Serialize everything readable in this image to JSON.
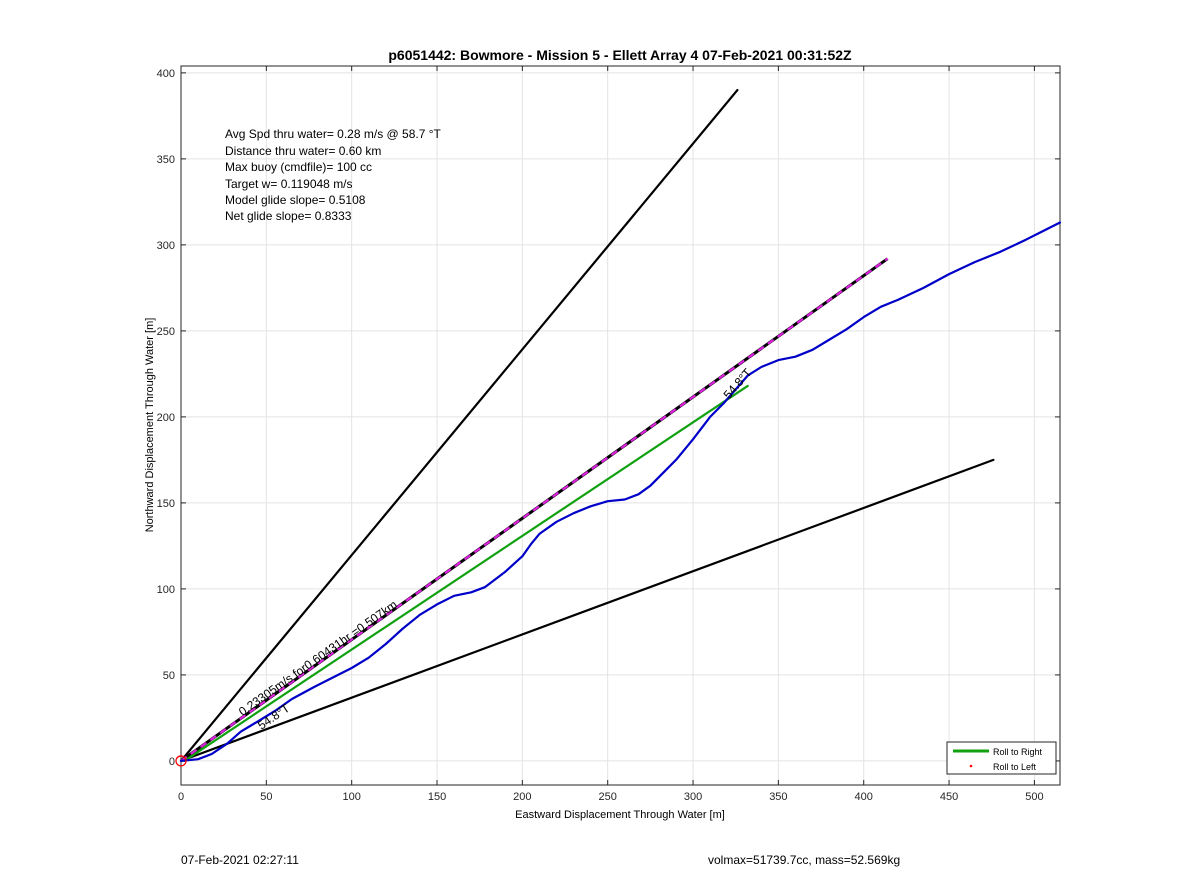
{
  "footer": {
    "left": "07-Feb-2021 02:27:11",
    "right": "volmax=51739.7cc, mass=52.569kg"
  },
  "chart_data": {
    "type": "line",
    "title": "p6051442: Bowmore - Mission 5 - Ellett Array 4 07-Feb-2021 00:31:52Z",
    "xlabel": "Eastward Displacement Through Water [m]",
    "ylabel": "Northward Displacement Through Water [m]",
    "xlim": [
      0,
      515
    ],
    "ylim": [
      -14,
      404
    ],
    "xticks": [
      0,
      50,
      100,
      150,
      200,
      250,
      300,
      350,
      400,
      450,
      500
    ],
    "yticks": [
      0,
      50,
      100,
      150,
      200,
      250,
      300,
      350,
      400
    ],
    "grid": true,
    "info_text": [
      "Avg Spd thru water=  0.28 m/s @  58.7 °T",
      "Distance thru water=  0.60 km",
      "Max buoy (cmdfile)= 100 cc",
      "Target w= 0.119048 m/s",
      "Model glide slope= 0.5108",
      "Net glide slope= 0.8333"
    ],
    "annotations": [
      {
        "text": "0.23305m/s for0.60431hr =0.507km",
        "x": 36,
        "y": 26,
        "angle_deg": 35.2
      },
      {
        "text": "54.8°T",
        "x": 47,
        "y": 18,
        "angle_deg": 34
      },
      {
        "text": "54.8°T",
        "x": 321,
        "y": 210,
        "angle_deg": 49
      }
    ],
    "legend": {
      "position": "bottom-right",
      "entries": [
        "Roll to Right",
        "Roll to Left"
      ]
    },
    "series": [
      {
        "kind": "wedge-left",
        "color": "#000000",
        "x": [
          0,
          326
        ],
        "y": [
          0,
          390
        ]
      },
      {
        "kind": "wedge-right",
        "color": "#000000",
        "x": [
          0,
          476
        ],
        "y": [
          0,
          175
        ]
      },
      {
        "kind": "current-vector",
        "color": "#000000",
        "dash_color": "#e020e0",
        "x": [
          0,
          414
        ],
        "y": [
          0,
          292
        ]
      },
      {
        "kind": "target-heading",
        "color": "#10a010",
        "x": [
          2,
          332
        ],
        "y": [
          0,
          218
        ]
      },
      {
        "kind": "track",
        "color": "#0000c8",
        "x": [
          0,
          10,
          18,
          27,
          35,
          45,
          55,
          65,
          78,
          90,
          100,
          110,
          120,
          130,
          140,
          150,
          160,
          170,
          178,
          190,
          200,
          205,
          210,
          220,
          230,
          240,
          250,
          260,
          268,
          275,
          282,
          290,
          300,
          310,
          318,
          325,
          332,
          340,
          350,
          360,
          370,
          380,
          390,
          400,
          410,
          420,
          435,
          450,
          465,
          480,
          495,
          505,
          515
        ],
        "y": [
          0,
          1,
          4,
          10,
          17,
          23,
          29,
          36,
          43,
          49,
          54,
          60,
          68,
          77,
          85,
          91,
          96,
          98,
          101,
          110,
          119,
          126,
          132,
          139,
          144,
          148,
          151,
          152,
          155,
          160,
          167,
          175,
          187,
          200,
          208,
          216,
          224,
          229,
          233,
          235,
          239,
          245,
          251,
          258,
          264,
          268,
          275,
          283,
          290,
          296,
          303,
          308,
          313
        ]
      },
      {
        "kind": "start-marker",
        "color": "#ff0000",
        "x": [
          0
        ],
        "y": [
          0
        ]
      }
    ]
  }
}
